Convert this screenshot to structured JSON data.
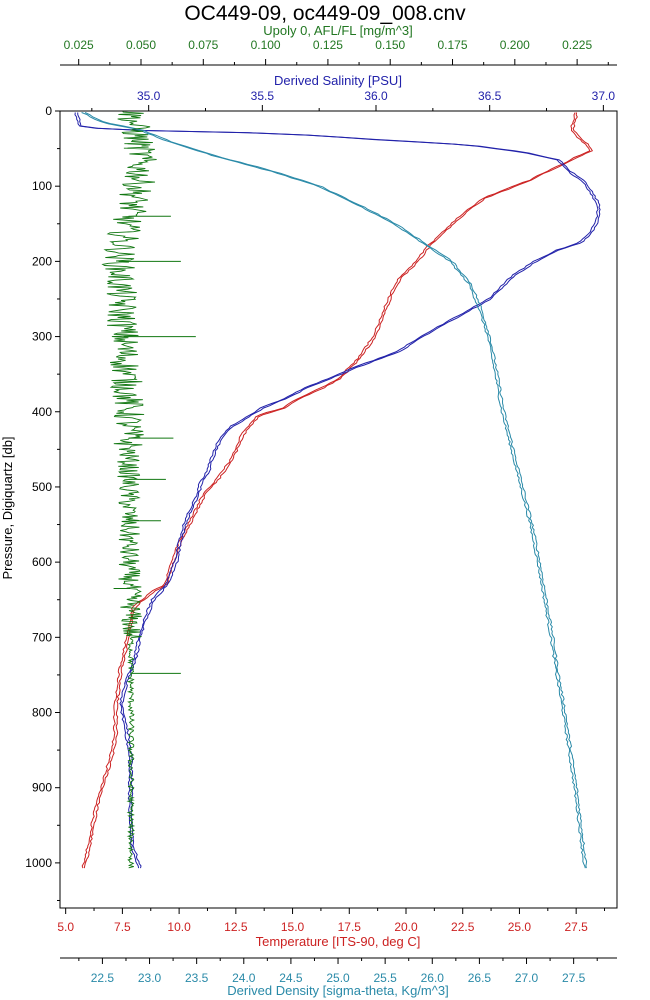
{
  "chart_data": {
    "type": "line",
    "title": "OC449-09, oc449-09_008.cnv",
    "grid": false,
    "legend": "none",
    "y_axis": {
      "label": "Pressure, Digiquartz [db]",
      "range": [
        0,
        1060
      ],
      "inverted": true,
      "ticks": [
        "0",
        "100",
        "200",
        "300",
        "400",
        "500",
        "600",
        "700",
        "800",
        "900",
        "1000"
      ],
      "color": "#000000"
    },
    "x_axes": [
      {
        "id": "fluorescence",
        "label": "Upoly 0, AFL/FL [mg/m^3]",
        "position": "top-outer",
        "range": [
          0.0175,
          0.241
        ],
        "ticks": [
          "0.025",
          "0.050",
          "0.075",
          "0.100",
          "0.125",
          "0.150",
          "0.175",
          "0.200",
          "0.225"
        ],
        "color": "#227722"
      },
      {
        "id": "salinity",
        "label": "Derived Salinity [PSU]",
        "position": "top-inner",
        "range": [
          34.61,
          37.06
        ],
        "ticks": [
          "35.0",
          "35.5",
          "36.0",
          "36.5",
          "37.0"
        ],
        "color": "#2222aa"
      },
      {
        "id": "temperature",
        "label": "Temperature [ITS-90, deg C]",
        "position": "bottom-inner",
        "range": [
          4.75,
          29.3
        ],
        "ticks": [
          "5.0",
          "7.5",
          "10.0",
          "12.5",
          "15.0",
          "17.5",
          "20.0",
          "22.5",
          "25.0",
          "27.5"
        ],
        "color": "#cc2222"
      },
      {
        "id": "density",
        "label": "Derived Density [sigma-theta, Kg/m^3]",
        "position": "bottom-outer",
        "range": [
          22.05,
          27.96
        ],
        "ticks": [
          "22.5",
          "23.0",
          "23.5",
          "24.0",
          "24.5",
          "25.0",
          "25.5",
          "26.0",
          "26.5",
          "27.0",
          "27.5"
        ],
        "color": "#2a8aa8"
      }
    ],
    "series": [
      {
        "axis": "temperature",
        "color": "#cc2222",
        "points": [
          [
            27.5,
            2
          ],
          [
            27.4,
            15
          ],
          [
            27.3,
            25
          ],
          [
            27.6,
            35
          ],
          [
            28.0,
            45
          ],
          [
            28.2,
            52
          ],
          [
            27.6,
            60
          ],
          [
            27.0,
            70
          ],
          [
            26.4,
            78
          ],
          [
            25.9,
            85
          ],
          [
            25.5,
            92
          ],
          [
            24.8,
            100
          ],
          [
            23.5,
            115
          ],
          [
            22.6,
            135
          ],
          [
            21.7,
            160
          ],
          [
            21.0,
            180
          ],
          [
            20.5,
            200
          ],
          [
            19.8,
            220
          ],
          [
            19.4,
            240
          ],
          [
            19.0,
            270
          ],
          [
            18.6,
            300
          ],
          [
            17.9,
            330
          ],
          [
            17.1,
            355
          ],
          [
            16.2,
            370
          ],
          [
            15.1,
            385
          ],
          [
            14.6,
            395
          ],
          [
            13.5,
            405
          ],
          [
            12.8,
            430
          ],
          [
            12.3,
            465
          ],
          [
            11.7,
            490
          ],
          [
            11.1,
            510
          ],
          [
            10.6,
            540
          ],
          [
            10.1,
            570
          ],
          [
            9.7,
            600
          ],
          [
            9.4,
            630
          ],
          [
            8.8,
            640
          ],
          [
            8.4,
            650
          ],
          [
            8.0,
            660
          ],
          [
            7.8,
            690
          ],
          [
            7.6,
            720
          ],
          [
            7.4,
            745
          ],
          [
            7.3,
            770
          ],
          [
            7.2,
            795
          ],
          [
            7.2,
            830
          ],
          [
            7.0,
            860
          ],
          [
            6.7,
            890
          ],
          [
            6.4,
            920
          ],
          [
            6.2,
            950
          ],
          [
            6.0,
            980
          ],
          [
            5.8,
            1007
          ]
        ]
      },
      {
        "axis": "salinity",
        "color": "#2222aa",
        "points": [
          [
            34.68,
            2
          ],
          [
            34.7,
            20
          ],
          [
            34.82,
            25
          ],
          [
            35.6,
            30
          ],
          [
            36.0,
            38
          ],
          [
            36.4,
            45
          ],
          [
            36.65,
            55
          ],
          [
            36.8,
            65
          ],
          [
            36.85,
            80
          ],
          [
            36.92,
            95
          ],
          [
            36.95,
            110
          ],
          [
            36.98,
            125
          ],
          [
            36.98,
            140
          ],
          [
            36.95,
            160
          ],
          [
            36.9,
            175
          ],
          [
            36.8,
            185
          ],
          [
            36.7,
            200
          ],
          [
            36.6,
            220
          ],
          [
            36.5,
            250
          ],
          [
            36.35,
            275
          ],
          [
            36.2,
            300
          ],
          [
            36.1,
            320
          ],
          [
            35.92,
            340
          ],
          [
            35.8,
            355
          ],
          [
            35.68,
            370
          ],
          [
            35.62,
            380
          ],
          [
            35.5,
            395
          ],
          [
            35.42,
            410
          ],
          [
            35.36,
            420
          ],
          [
            35.31,
            440
          ],
          [
            35.28,
            460
          ],
          [
            35.26,
            480
          ],
          [
            35.23,
            495
          ],
          [
            35.21,
            515
          ],
          [
            35.17,
            540
          ],
          [
            35.14,
            570
          ],
          [
            35.12,
            600
          ],
          [
            35.08,
            630
          ],
          [
            35.02,
            650
          ],
          [
            34.98,
            680
          ],
          [
            34.96,
            700
          ],
          [
            34.94,
            730
          ],
          [
            34.9,
            760
          ],
          [
            34.88,
            790
          ],
          [
            34.9,
            820
          ],
          [
            34.92,
            860
          ],
          [
            34.92,
            900
          ],
          [
            34.92,
            940
          ],
          [
            34.93,
            980
          ],
          [
            34.96,
            1007
          ]
        ]
      },
      {
        "axis": "density",
        "color": "#2a8aa8",
        "points": [
          [
            22.3,
            2
          ],
          [
            22.5,
            15
          ],
          [
            22.9,
            25
          ],
          [
            23.2,
            40
          ],
          [
            23.7,
            60
          ],
          [
            24.3,
            80
          ],
          [
            24.8,
            100
          ],
          [
            25.3,
            130
          ],
          [
            25.6,
            150
          ],
          [
            25.9,
            175
          ],
          [
            26.2,
            200
          ],
          [
            26.4,
            230
          ],
          [
            26.5,
            260
          ],
          [
            26.6,
            300
          ],
          [
            26.68,
            350
          ],
          [
            26.75,
            400
          ],
          [
            26.85,
            450
          ],
          [
            26.95,
            500
          ],
          [
            27.05,
            550
          ],
          [
            27.13,
            600
          ],
          [
            27.2,
            650
          ],
          [
            27.27,
            700
          ],
          [
            27.33,
            750
          ],
          [
            27.4,
            800
          ],
          [
            27.46,
            850
          ],
          [
            27.52,
            900
          ],
          [
            27.57,
            950
          ],
          [
            27.62,
            1000
          ],
          [
            27.63,
            1007
          ]
        ]
      },
      {
        "axis": "fluorescence",
        "color": "#117711",
        "points": [
          [
            0.046,
            0
          ],
          [
            0.05,
            60
          ],
          [
            0.049,
            100
          ],
          [
            0.044,
            150
          ],
          [
            0.041,
            200
          ],
          [
            0.042,
            250
          ],
          [
            0.043,
            300
          ],
          [
            0.044,
            350
          ],
          [
            0.045,
            400
          ],
          [
            0.045,
            450
          ],
          [
            0.045,
            500
          ],
          [
            0.045,
            550
          ],
          [
            0.045,
            600
          ],
          [
            0.046,
            650
          ],
          [
            0.046,
            700
          ],
          [
            0.046,
            750
          ],
          [
            0.046,
            800
          ],
          [
            0.046,
            850
          ],
          [
            0.046,
            900
          ],
          [
            0.046,
            950
          ],
          [
            0.046,
            1007
          ]
        ],
        "spikes": [
          [
            0.066,
            200
          ],
          [
            0.072,
            300
          ],
          [
            0.066,
            748
          ],
          [
            0.062,
            140
          ],
          [
            0.063,
            435
          ],
          [
            0.06,
            490
          ],
          [
            0.058,
            545
          ],
          [
            0.039,
            635
          ]
        ]
      }
    ]
  }
}
